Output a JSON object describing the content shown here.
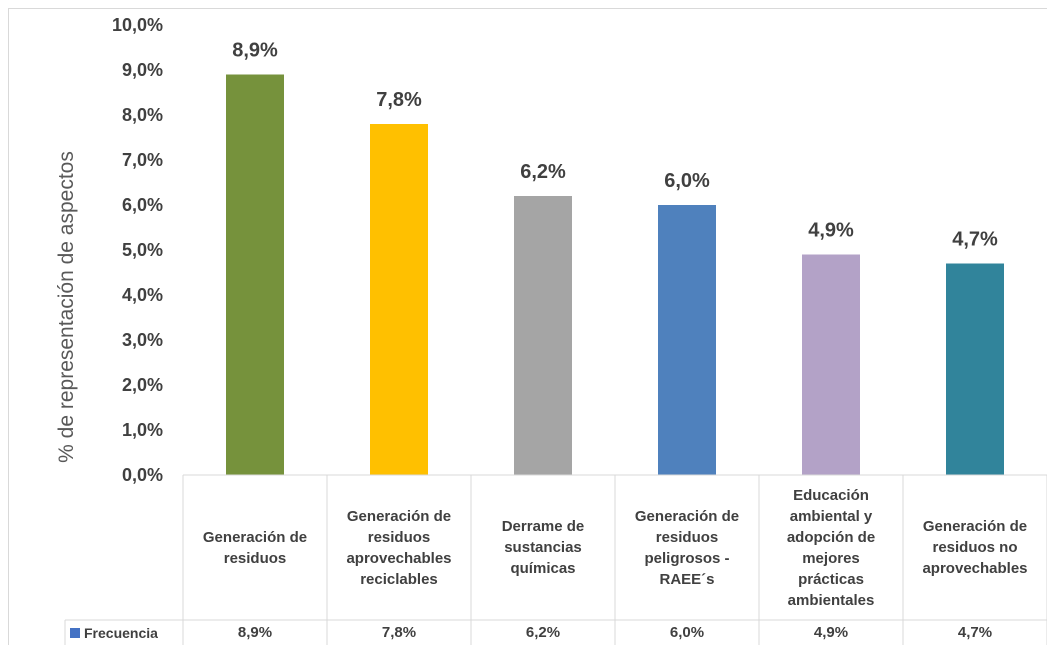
{
  "chart_data": {
    "type": "bar",
    "ylabel": "% de representación de aspectos",
    "ylim": [
      0,
      10
    ],
    "yticks": [
      "0,0%",
      "1,0%",
      "2,0%",
      "3,0%",
      "4,0%",
      "5,0%",
      "6,0%",
      "7,0%",
      "8,0%",
      "9,0%",
      "10,0%"
    ],
    "categories": [
      "Generación de residuos",
      "Generación de residuos aprovechables reciclables",
      "Derrame de sustancias químicas",
      "Generación de residuos peligrosos - RAEE´s",
      "Educación ambiental y adopción de mejores prácticas ambientales",
      "Generación de residuos no aprovechables"
    ],
    "values": [
      8.9,
      7.8,
      6.2,
      6.0,
      4.9,
      4.7
    ],
    "data_labels": [
      "8,9%",
      "7,8%",
      "6,2%",
      "6,0%",
      "4,9%",
      "4,7%"
    ],
    "bar_colors": [
      "#76923c",
      "#ffc000",
      "#a5a5a5",
      "#4f81bd",
      "#b3a2c7",
      "#31849b"
    ],
    "series": [
      {
        "name": "Frecuencia",
        "color": "#4472c4",
        "values": [
          8.9,
          7.8,
          6.2,
          6.0,
          4.9,
          4.7
        ]
      }
    ],
    "table": {
      "legend_label": "Frecuencia",
      "cells": [
        "8,9%",
        "7,8%",
        "6,2%",
        "6,0%",
        "4,9%",
        "4,7%"
      ]
    },
    "grid": false,
    "data_table": true
  }
}
